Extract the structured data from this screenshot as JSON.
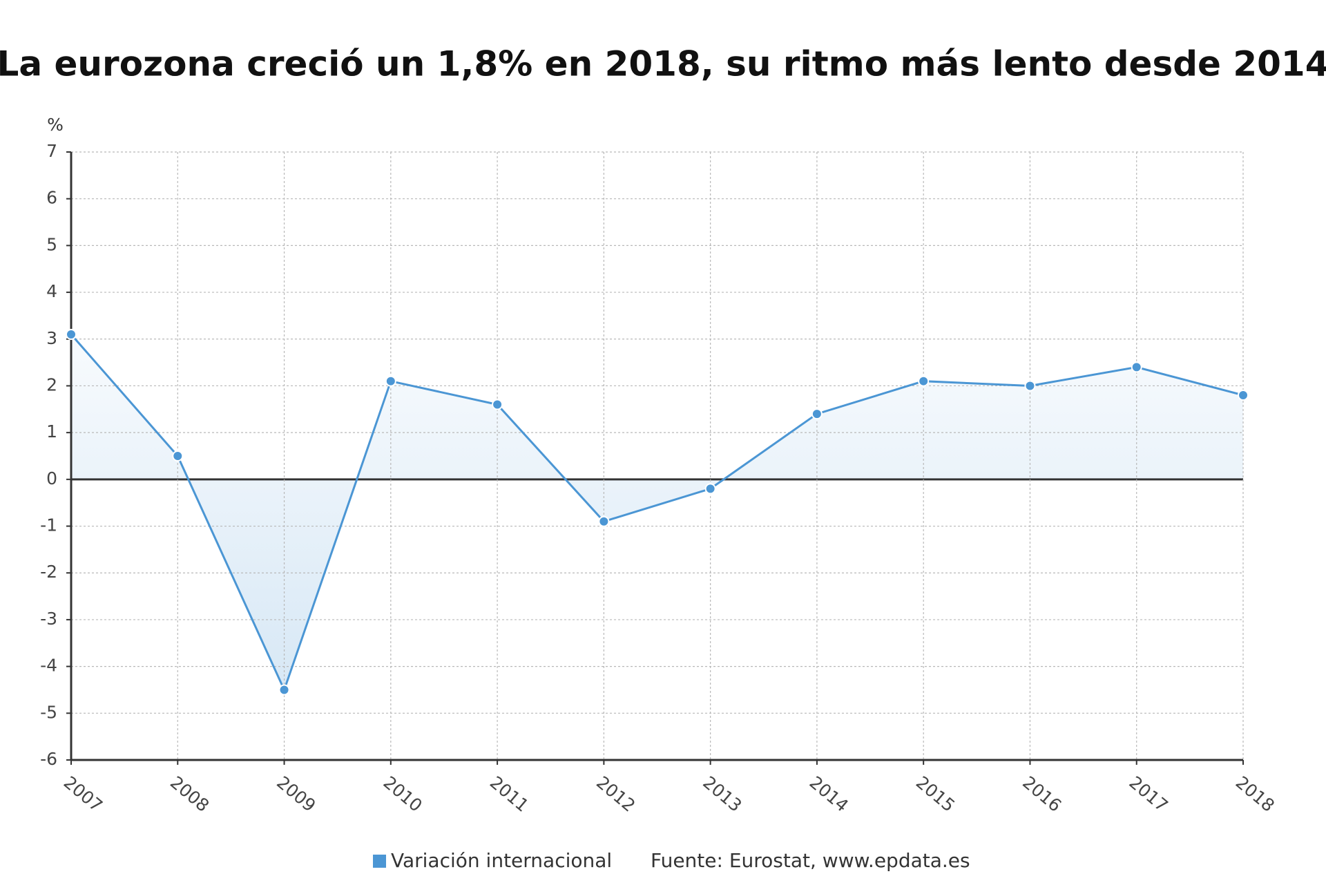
{
  "chart_data": {
    "type": "line",
    "title": "La eurozona creció un 1,8% en 2018, su ritmo más lento desde 2014",
    "y_label": "%",
    "x": [
      2007,
      2008,
      2009,
      2010,
      2011,
      2012,
      2013,
      2014,
      2015,
      2016,
      2017,
      2018
    ],
    "xlim": [
      2007,
      2018
    ],
    "xticks": [
      2007,
      2008,
      2009,
      2010,
      2011,
      2012,
      2013,
      2014,
      2015,
      2016,
      2017,
      2018
    ],
    "ylim": [
      -6,
      7
    ],
    "yticks": [
      -6,
      -5,
      -4,
      -3,
      -2,
      -1,
      0,
      1,
      2,
      3,
      4,
      5,
      6,
      7
    ],
    "grid": true,
    "series": [
      {
        "name": "Variación internacional",
        "color": "#4b96d4",
        "values": [
          3.1,
          0.5,
          -4.5,
          2.1,
          1.6,
          -0.9,
          -0.2,
          1.4,
          2.1,
          2.0,
          2.4,
          1.8
        ]
      }
    ],
    "source": "Fuente: Eurostat, www.epdata.es"
  }
}
